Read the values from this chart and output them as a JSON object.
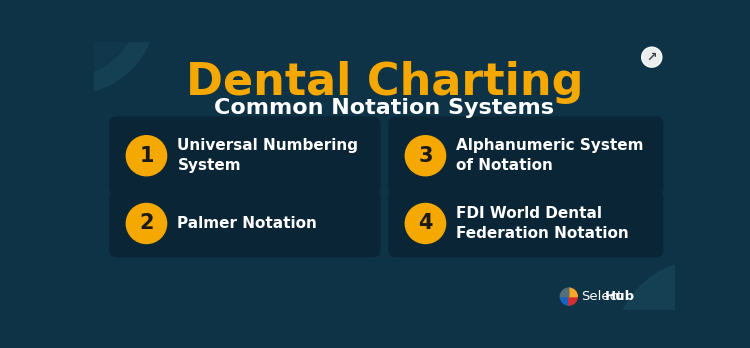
{
  "bg_color": "#0e3347",
  "title": "Dental Charting",
  "subtitle": "Common Notation Systems",
  "title_color": "#f5a800",
  "subtitle_color": "#ffffff",
  "title_fontsize": 32,
  "subtitle_fontsize": 16,
  "card_bg_color": "#0a2535",
  "card_text_color": "#ffffff",
  "circle_color": "#f5a800",
  "circle_text_color": "#1a1a1a",
  "decor_circle_color": "#1b4a5e",
  "share_icon_color": "#ffffff",
  "items": [
    {
      "num": "1",
      "text": "Universal Numbering\nSystem",
      "col": 0,
      "row": 0
    },
    {
      "num": "2",
      "text": "Palmer Notation",
      "col": 0,
      "row": 1
    },
    {
      "num": "3",
      "text": "Alphanumeric System\nof Notation",
      "col": 1,
      "row": 0
    },
    {
      "num": "4",
      "text": "FDI World Dental\nFederation Notation",
      "col": 1,
      "row": 1
    }
  ],
  "logo_select_color": "#ffffff",
  "logo_hub_color": "#ffffff",
  "logo_blue": "#1565c0",
  "logo_red": "#d32f2f",
  "logo_yellow": "#f9a825",
  "logo_gray": "#546e7a"
}
